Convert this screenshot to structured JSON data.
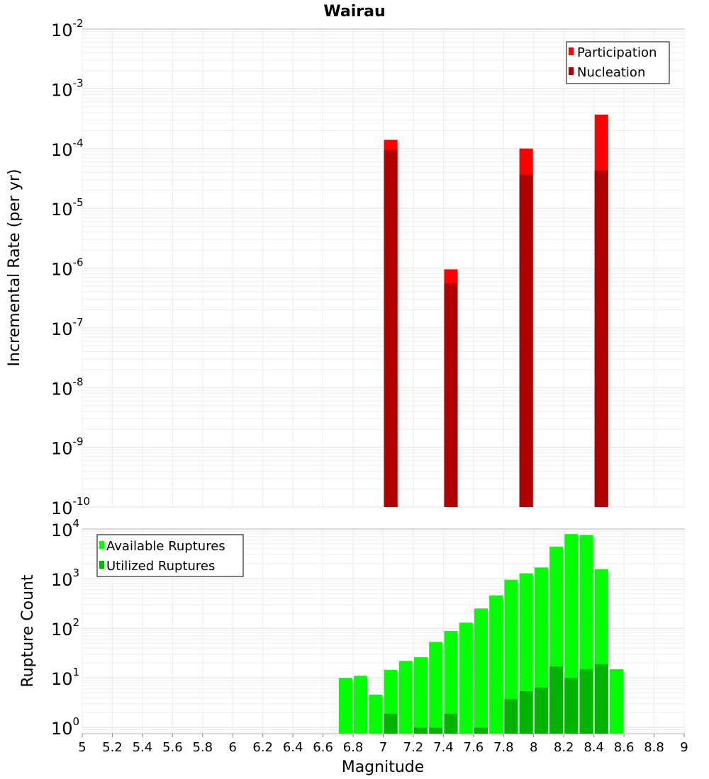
{
  "chart_data": [
    {
      "type": "bar",
      "title": "Wairau",
      "ylabel": "Incremental Rate (per yr)",
      "xlabel": "",
      "yscale": "log",
      "ylim": [
        1e-10,
        0.01
      ],
      "xlim": [
        5,
        9
      ],
      "ytick_exponents": [
        "-2",
        "-3",
        "-4",
        "-5",
        "-6",
        "-7",
        "-8",
        "-9",
        "-10"
      ],
      "legend": {
        "placement": "top-right"
      },
      "grid": true,
      "series": [
        {
          "name": "Participation",
          "color": "#ff0000",
          "x": [
            7.05,
            7.45,
            7.95,
            8.45
          ],
          "values": [
            0.00014,
            9.5e-07,
            0.0001,
            0.00037
          ]
        },
        {
          "name": "Nucleation",
          "color": "#b00000",
          "x": [
            7.05,
            7.45,
            7.95,
            8.45
          ],
          "values": [
            9.5e-05,
            5.5e-07,
            3.7e-05,
            4.3e-05
          ]
        }
      ]
    },
    {
      "type": "bar",
      "title": "",
      "ylabel": "Rupture Count",
      "xlabel": "Magnitude",
      "yscale": "log",
      "ylim": [
        0.75,
        10000
      ],
      "xlim": [
        5,
        9
      ],
      "xticks": [
        "5",
        "5.2",
        "5.4",
        "5.6",
        "5.8",
        "6",
        "6.2",
        "6.4",
        "6.6",
        "6.8",
        "7",
        "7.2",
        "7.4",
        "7.6",
        "7.8",
        "8",
        "8.2",
        "8.4",
        "8.6",
        "8.8",
        "9"
      ],
      "ytick_exponents": [
        "4",
        "3",
        "2",
        "1",
        "0"
      ],
      "legend": {
        "placement": "top-left"
      },
      "grid": true,
      "series": [
        {
          "name": "Available Ruptures",
          "color": "#00ff00",
          "x": [
            6.75,
            6.85,
            6.95,
            7.05,
            7.15,
            7.25,
            7.35,
            7.45,
            7.55,
            7.65,
            7.75,
            7.85,
            7.95,
            8.05,
            8.15,
            8.25,
            8.35,
            8.45,
            8.55
          ],
          "values": [
            10,
            11,
            4.6,
            14.5,
            22,
            26,
            53,
            88,
            130,
            250,
            460,
            950,
            1280,
            1680,
            4400,
            7900,
            7600,
            1560,
            15
          ]
        },
        {
          "name": "Utilized Ruptures",
          "color": "#00b400",
          "x": [
            7.05,
            7.25,
            7.35,
            7.45,
            7.65,
            7.85,
            7.95,
            8.05,
            8.15,
            8.25,
            8.35,
            8.45
          ],
          "values": [
            1.9,
            1,
            1,
            1.9,
            1,
            3.7,
            5.4,
            6.4,
            17,
            10,
            15,
            19
          ]
        }
      ]
    }
  ]
}
